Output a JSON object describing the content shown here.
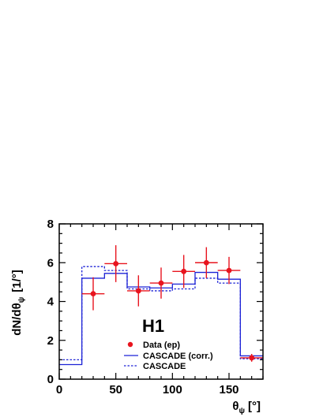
{
  "chart_data": {
    "type": "histogram",
    "experiment_label": "H1",
    "xlabel": "θ",
    "xlabel_sub": "ψ",
    "xlabel_unit": "[°]",
    "ylabel_main": "dN/dθ",
    "ylabel_sub": "ψ",
    "ylabel_unit": "[1/°]",
    "xlim": [
      0,
      180
    ],
    "ylim": [
      0,
      8
    ],
    "x_ticks": [
      0,
      50,
      100,
      150
    ],
    "y_ticks": [
      0,
      2,
      4,
      6,
      8
    ],
    "bin_edges": [
      0,
      20,
      40,
      60,
      80,
      100,
      120,
      140,
      160,
      180
    ],
    "series": [
      {
        "name": "Data (ep)",
        "style": "points",
        "color": "#e8141e",
        "x": [
          30,
          50,
          70,
          90,
          110,
          130,
          150,
          170
        ],
        "y": [
          4.4,
          5.95,
          4.55,
          4.95,
          5.55,
          6.0,
          5.6,
          1.1
        ],
        "yerr": [
          0.85,
          0.95,
          0.8,
          0.8,
          0.85,
          0.8,
          0.7,
          0.2
        ]
      },
      {
        "name": "CASCADE (corr.)",
        "style": "solid",
        "color": "#1c22d6",
        "values": [
          0.75,
          5.2,
          5.45,
          4.75,
          4.7,
          4.9,
          5.5,
          5.15,
          1.2
        ]
      },
      {
        "name": "CASCADE",
        "style": "dashed",
        "color": "#1c22d6",
        "values": [
          1.0,
          5.8,
          5.6,
          4.65,
          4.55,
          4.65,
          5.2,
          4.95,
          1.05
        ]
      }
    ],
    "legend_placement": "bottom-center"
  }
}
